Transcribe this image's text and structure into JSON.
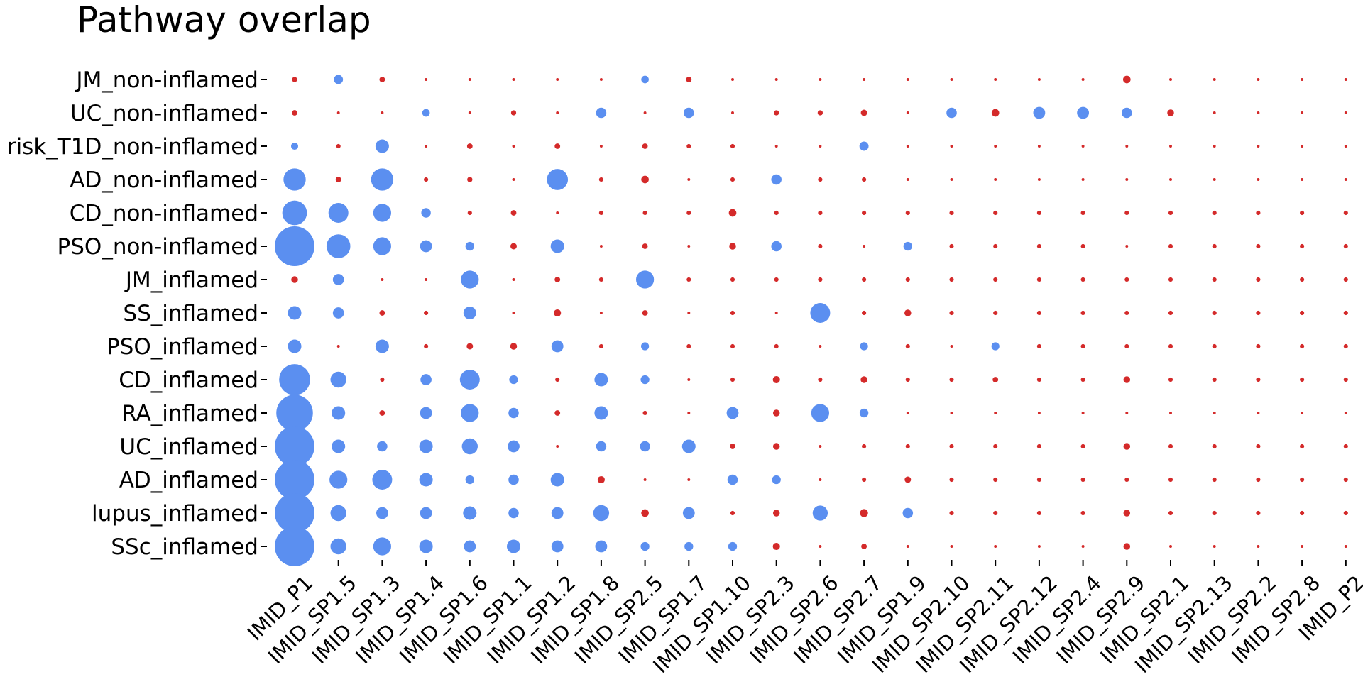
{
  "chart_data": {
    "type": "scatter",
    "title": "Pathway overlap",
    "xlabel": "",
    "ylabel": "",
    "x_categories": [
      "IMID_P1",
      "IMID_SP1.5",
      "IMID_SP1.3",
      "IMID_SP1.4",
      "IMID_SP1.6",
      "IMID_SP1.1",
      "IMID_SP1.2",
      "IMID_SP1.8",
      "IMID_SP2.5",
      "IMID_SP1.7",
      "IMID_SP1.10",
      "IMID_SP2.3",
      "IMID_SP2.6",
      "IMID_SP2.7",
      "IMID_SP1.9",
      "IMID_SP2.10",
      "IMID_SP2.11",
      "IMID_SP2.12",
      "IMID_SP2.4",
      "IMID_SP2.9",
      "IMID_SP2.1",
      "IMID_SP2.13",
      "IMID_SP2.2",
      "IMID_SP2.8",
      "IMID_P2"
    ],
    "y_categories": [
      "JM_non-inflamed",
      "UC_non-inflamed",
      "risk_T1D_non-inflamed",
      "AD_non-inflamed",
      "CD_non-inflamed",
      "PSO_non-inflamed",
      "JM_inflamed",
      "SS_inflamed",
      "PSO_inflamed",
      "CD_inflamed",
      "RA_inflamed",
      "UC_inflamed",
      "AD_inflamed",
      "lupus_inflamed",
      "SSc_inflamed"
    ],
    "colors": {
      "positive": "#5b8ff0",
      "negative": "#d42a2a"
    },
    "size_scale": "relative, 1 = largest dot",
    "grid": false,
    "legend": "none",
    "rows": [
      {
        "label": "JM_non-inflamed",
        "sizes": [
          0.13,
          0.23,
          0.14,
          0.07,
          0.07,
          0.07,
          0.07,
          0.07,
          0.19,
          0.14,
          0.07,
          0.07,
          0.07,
          0.07,
          0.07,
          0.07,
          0.07,
          0.07,
          0.07,
          0.19,
          0.07,
          0.07,
          0.07,
          0.07,
          0.07
        ],
        "colors": [
          "r",
          "b",
          "r",
          "r",
          "r",
          "r",
          "r",
          "r",
          "b",
          "r",
          "r",
          "r",
          "r",
          "r",
          "r",
          "r",
          "r",
          "r",
          "r",
          "r",
          "r",
          "r",
          "r",
          "r",
          "r"
        ]
      },
      {
        "label": "UC_non-inflamed",
        "sizes": [
          0.14,
          0.07,
          0.07,
          0.19,
          0.07,
          0.13,
          0.07,
          0.26,
          0.07,
          0.26,
          0.07,
          0.13,
          0.13,
          0.16,
          0.07,
          0.26,
          0.19,
          0.3,
          0.3,
          0.26,
          0.17,
          0.07,
          0.07,
          0.07,
          0.07
        ],
        "colors": [
          "r",
          "r",
          "r",
          "b",
          "r",
          "r",
          "r",
          "b",
          "r",
          "b",
          "r",
          "r",
          "r",
          "r",
          "r",
          "b",
          "r",
          "b",
          "b",
          "b",
          "r",
          "r",
          "r",
          "r",
          "r"
        ]
      },
      {
        "label": "risk_T1D_non-inflamed",
        "sizes": [
          0.18,
          0.11,
          0.34,
          0.07,
          0.14,
          0.07,
          0.14,
          0.07,
          0.14,
          0.11,
          0.11,
          0.07,
          0.07,
          0.23,
          0.07,
          0.07,
          0.07,
          0.07,
          0.07,
          0.07,
          0.07,
          0.07,
          0.07,
          0.07,
          0.07
        ],
        "colors": [
          "b",
          "r",
          "b",
          "r",
          "r",
          "r",
          "r",
          "r",
          "r",
          "r",
          "r",
          "r",
          "r",
          "b",
          "r",
          "r",
          "r",
          "r",
          "r",
          "r",
          "r",
          "r",
          "r",
          "r",
          "r"
        ]
      },
      {
        "label": "AD_non-inflamed",
        "sizes": [
          0.56,
          0.14,
          0.56,
          0.11,
          0.13,
          0.07,
          0.53,
          0.11,
          0.19,
          0.07,
          0.11,
          0.26,
          0.11,
          0.11,
          0.07,
          0.07,
          0.07,
          0.07,
          0.07,
          0.07,
          0.07,
          0.07,
          0.07,
          0.07,
          0.07
        ],
        "colors": [
          "b",
          "r",
          "b",
          "r",
          "r",
          "r",
          "b",
          "r",
          "r",
          "r",
          "r",
          "b",
          "r",
          "r",
          "r",
          "r",
          "r",
          "r",
          "r",
          "r",
          "r",
          "r",
          "r",
          "r",
          "r"
        ]
      },
      {
        "label": "CD_non-inflamed",
        "sizes": [
          0.62,
          0.5,
          0.45,
          0.24,
          0.11,
          0.14,
          0.07,
          0.11,
          0.11,
          0.11,
          0.19,
          0.11,
          0.11,
          0.11,
          0.11,
          0.11,
          0.11,
          0.11,
          0.11,
          0.11,
          0.11,
          0.11,
          0.11,
          0.11,
          0.11
        ],
        "colors": [
          "b",
          "b",
          "b",
          "b",
          "r",
          "r",
          "r",
          "r",
          "r",
          "r",
          "r",
          "r",
          "r",
          "r",
          "r",
          "r",
          "r",
          "r",
          "r",
          "r",
          "r",
          "r",
          "r",
          "r",
          "r"
        ]
      },
      {
        "label": "PSO_non-inflamed",
        "sizes": [
          1.0,
          0.6,
          0.45,
          0.3,
          0.22,
          0.16,
          0.34,
          0.07,
          0.14,
          0.07,
          0.17,
          0.26,
          0.11,
          0.07,
          0.22,
          0.11,
          0.11,
          0.11,
          0.11,
          0.07,
          0.11,
          0.11,
          0.11,
          0.11,
          0.11
        ],
        "colors": [
          "b",
          "b",
          "b",
          "b",
          "b",
          "r",
          "b",
          "r",
          "r",
          "r",
          "r",
          "b",
          "r",
          "r",
          "b",
          "r",
          "r",
          "r",
          "r",
          "r",
          "r",
          "r",
          "r",
          "r",
          "r"
        ]
      },
      {
        "label": "JM_inflamed",
        "sizes": [
          0.17,
          0.28,
          0.07,
          0.07,
          0.45,
          0.07,
          0.14,
          0.11,
          0.45,
          0.11,
          0.11,
          0.11,
          0.11,
          0.11,
          0.11,
          0.11,
          0.11,
          0.11,
          0.11,
          0.11,
          0.11,
          0.11,
          0.11,
          0.11,
          0.11
        ],
        "colors": [
          "r",
          "b",
          "r",
          "r",
          "b",
          "r",
          "r",
          "r",
          "b",
          "r",
          "r",
          "r",
          "r",
          "r",
          "r",
          "r",
          "r",
          "r",
          "r",
          "r",
          "r",
          "r",
          "r",
          "r",
          "r"
        ]
      },
      {
        "label": "SS_inflamed",
        "sizes": [
          0.34,
          0.28,
          0.14,
          0.11,
          0.32,
          0.07,
          0.18,
          0.07,
          0.14,
          0.07,
          0.11,
          0.07,
          0.5,
          0.11,
          0.17,
          0.11,
          0.11,
          0.11,
          0.11,
          0.11,
          0.11,
          0.11,
          0.11,
          0.11,
          0.11
        ],
        "colors": [
          "b",
          "b",
          "r",
          "r",
          "b",
          "r",
          "r",
          "r",
          "r",
          "r",
          "r",
          "r",
          "b",
          "r",
          "r",
          "r",
          "r",
          "r",
          "r",
          "r",
          "r",
          "r",
          "r",
          "r",
          "r"
        ]
      },
      {
        "label": "PSO_inflamed",
        "sizes": [
          0.34,
          0.07,
          0.34,
          0.11,
          0.16,
          0.17,
          0.3,
          0.11,
          0.2,
          0.11,
          0.11,
          0.11,
          0.07,
          0.2,
          0.11,
          0.07,
          0.2,
          0.11,
          0.11,
          0.11,
          0.11,
          0.11,
          0.11,
          0.11,
          0.11
        ],
        "colors": [
          "b",
          "r",
          "b",
          "r",
          "r",
          "r",
          "b",
          "r",
          "b",
          "r",
          "r",
          "r",
          "r",
          "b",
          "r",
          "r",
          "b",
          "r",
          "r",
          "r",
          "r",
          "r",
          "r",
          "r",
          "r"
        ]
      },
      {
        "label": "CD_inflamed",
        "sizes": [
          0.78,
          0.4,
          0.11,
          0.28,
          0.5,
          0.22,
          0.11,
          0.34,
          0.22,
          0.07,
          0.11,
          0.18,
          0.11,
          0.17,
          0.11,
          0.11,
          0.14,
          0.11,
          0.11,
          0.17,
          0.11,
          0.11,
          0.11,
          0.11,
          0.11
        ],
        "colors": [
          "b",
          "b",
          "r",
          "b",
          "b",
          "b",
          "r",
          "b",
          "b",
          "r",
          "r",
          "r",
          "r",
          "r",
          "r",
          "r",
          "r",
          "r",
          "r",
          "r",
          "r",
          "r",
          "r",
          "r",
          "r"
        ]
      },
      {
        "label": "RA_inflamed",
        "sizes": [
          0.92,
          0.34,
          0.14,
          0.3,
          0.45,
          0.26,
          0.14,
          0.34,
          0.11,
          0.07,
          0.3,
          0.17,
          0.45,
          0.22,
          0.07,
          0.07,
          0.07,
          0.07,
          0.07,
          0.07,
          0.07,
          0.07,
          0.07,
          0.07,
          0.07
        ],
        "colors": [
          "b",
          "b",
          "r",
          "b",
          "b",
          "b",
          "r",
          "b",
          "r",
          "r",
          "b",
          "r",
          "b",
          "b",
          "r",
          "r",
          "r",
          "r",
          "r",
          "r",
          "r",
          "r",
          "r",
          "r",
          "r"
        ]
      },
      {
        "label": "UC_inflamed",
        "sizes": [
          1.0,
          0.34,
          0.26,
          0.34,
          0.4,
          0.3,
          0.07,
          0.26,
          0.26,
          0.34,
          0.14,
          0.17,
          0.07,
          0.11,
          0.11,
          0.11,
          0.11,
          0.11,
          0.11,
          0.17,
          0.11,
          0.11,
          0.11,
          0.11,
          0.11
        ],
        "colors": [
          "b",
          "b",
          "b",
          "b",
          "b",
          "b",
          "r",
          "b",
          "b",
          "b",
          "r",
          "r",
          "r",
          "r",
          "r",
          "r",
          "r",
          "r",
          "r",
          "r",
          "r",
          "r",
          "r",
          "r",
          "r"
        ]
      },
      {
        "label": "AD_inflamed",
        "sizes": [
          1.0,
          0.45,
          0.5,
          0.34,
          0.22,
          0.26,
          0.34,
          0.18,
          0.07,
          0.07,
          0.26,
          0.22,
          0.07,
          0.11,
          0.16,
          0.11,
          0.11,
          0.11,
          0.11,
          0.11,
          0.11,
          0.11,
          0.11,
          0.11,
          0.11
        ],
        "colors": [
          "b",
          "b",
          "b",
          "b",
          "b",
          "b",
          "b",
          "r",
          "r",
          "r",
          "b",
          "b",
          "r",
          "r",
          "r",
          "r",
          "r",
          "r",
          "r",
          "r",
          "r",
          "r",
          "r",
          "r",
          "r"
        ]
      },
      {
        "label": "lupus_inflamed",
        "sizes": [
          1.0,
          0.4,
          0.3,
          0.3,
          0.34,
          0.26,
          0.3,
          0.4,
          0.19,
          0.3,
          0.11,
          0.17,
          0.38,
          0.2,
          0.26,
          0.11,
          0.11,
          0.11,
          0.11,
          0.17,
          0.11,
          0.11,
          0.11,
          0.11,
          0.11
        ],
        "colors": [
          "b",
          "b",
          "b",
          "b",
          "b",
          "b",
          "b",
          "b",
          "r",
          "b",
          "r",
          "r",
          "b",
          "r",
          "b",
          "r",
          "r",
          "r",
          "r",
          "r",
          "r",
          "r",
          "r",
          "r",
          "r"
        ]
      },
      {
        "label": "SSc_inflamed",
        "sizes": [
          1.0,
          0.4,
          0.45,
          0.34,
          0.3,
          0.34,
          0.3,
          0.3,
          0.22,
          0.22,
          0.22,
          0.18,
          0.07,
          0.14,
          0.07,
          0.07,
          0.07,
          0.07,
          0.07,
          0.17,
          0.07,
          0.07,
          0.07,
          0.07,
          0.07
        ],
        "colors": [
          "b",
          "b",
          "b",
          "b",
          "b",
          "b",
          "b",
          "b",
          "b",
          "b",
          "b",
          "r",
          "r",
          "r",
          "r",
          "r",
          "r",
          "r",
          "r",
          "r",
          "r",
          "r",
          "r",
          "r",
          "r"
        ]
      }
    ]
  }
}
